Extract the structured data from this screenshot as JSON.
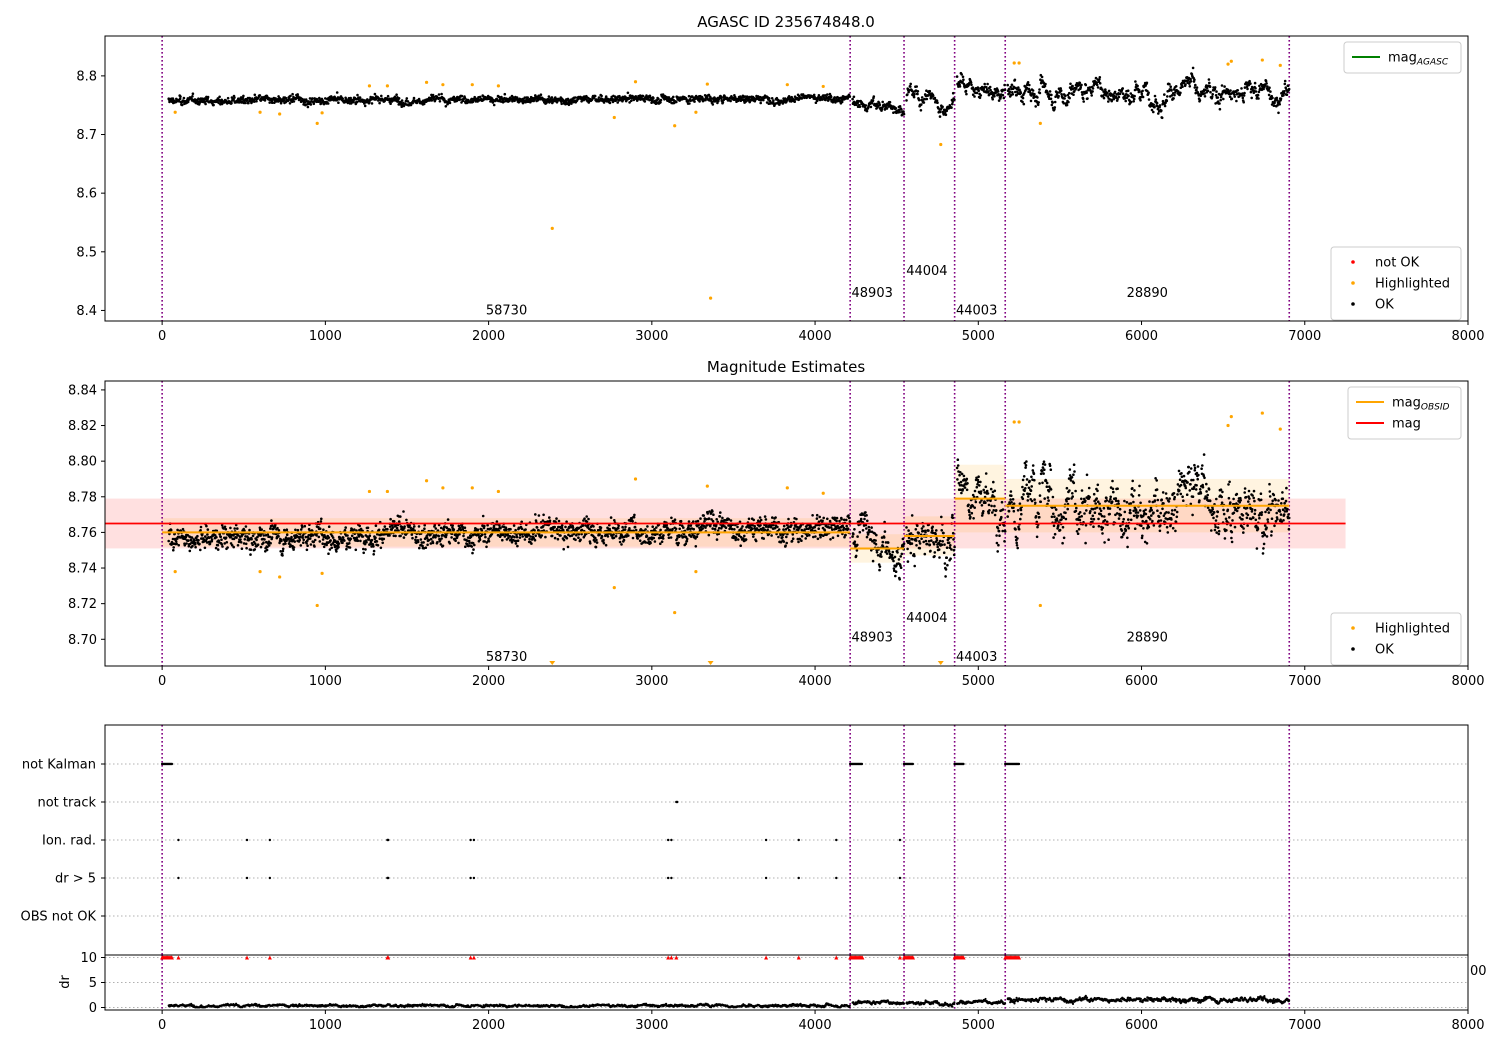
{
  "chart_data": [
    {
      "type": "scatter",
      "title": "AGASC ID 235674848.0",
      "xlim": [
        -350,
        8000
      ],
      "ylim": [
        8.382,
        8.868
      ],
      "x_ticks": [
        0,
        1000,
        2000,
        3000,
        4000,
        5000,
        6000,
        7000,
        8000
      ],
      "x_tick_labels": [
        "0",
        "1000",
        "2000",
        "3000",
        "4000",
        "5000",
        "6000",
        "7000",
        "8000"
      ],
      "y_ticks": [
        8.4,
        8.5,
        8.6,
        8.7,
        8.8
      ],
      "y_tick_labels": [
        "8.4",
        "8.5",
        "8.6",
        "8.7",
        "8.8"
      ],
      "legends": [
        {
          "placement": "top-right",
          "entries": [
            {
              "label": "mag",
              "sub": "AGASC",
              "marker": "line",
              "color": "#008000"
            }
          ]
        },
        {
          "placement": "lower-right",
          "entries": [
            {
              "label": "not OK",
              "marker": "dot",
              "color": "#ff0000"
            },
            {
              "label": "Highlighted",
              "marker": "dot",
              "color": "#ffa500"
            },
            {
              "label": "OK",
              "marker": "dot",
              "color": "#000000"
            }
          ]
        }
      ],
      "obs_boundaries": [
        0,
        4215,
        4545,
        4855,
        5165,
        6905
      ],
      "obs_labels": [
        {
          "text": "58730",
          "x": 2110,
          "y": 8.4
        },
        {
          "text": "48903",
          "x": 4350,
          "y": 8.43
        },
        {
          "text": "44004",
          "x": 4685,
          "y": 8.467
        },
        {
          "text": "44003",
          "x": 4990,
          "y": 8.4
        },
        {
          "text": "28890",
          "x": 6035,
          "y": 8.43
        }
      ],
      "segments": [
        {
          "x0": 40,
          "x1": 4215,
          "base": 8.76,
          "noise": 0.009,
          "spikes": 0.004,
          "trend": 0.006
        },
        {
          "x0": 4230,
          "x1": 4545,
          "base": 8.751,
          "noise": 0.008,
          "spikes": 0.012,
          "trend": -0.012
        },
        {
          "x0": 4560,
          "x1": 4855,
          "base": 8.76,
          "noise": 0.011,
          "spikes": 0.015,
          "trend": 0.0
        },
        {
          "x0": 4870,
          "x1": 5165,
          "base": 8.782,
          "noise": 0.012,
          "spikes": 0.015,
          "trend": -0.025
        },
        {
          "x0": 5180,
          "x1": 6905,
          "base": 8.775,
          "noise": 0.014,
          "spikes": 0.018,
          "trend": 0.0
        }
      ],
      "highlighted": [
        {
          "x": 80,
          "y": 8.738
        },
        {
          "x": 600,
          "y": 8.738
        },
        {
          "x": 720,
          "y": 8.735
        },
        {
          "x": 950,
          "y": 8.719
        },
        {
          "x": 980,
          "y": 8.737
        },
        {
          "x": 1270,
          "y": 8.783
        },
        {
          "x": 1380,
          "y": 8.783
        },
        {
          "x": 1620,
          "y": 8.789
        },
        {
          "x": 1720,
          "y": 8.785
        },
        {
          "x": 1900,
          "y": 8.785
        },
        {
          "x": 2060,
          "y": 8.783
        },
        {
          "x": 2390,
          "y": 8.54
        },
        {
          "x": 2770,
          "y": 8.729
        },
        {
          "x": 2900,
          "y": 8.79
        },
        {
          "x": 3140,
          "y": 8.715
        },
        {
          "x": 3270,
          "y": 8.738
        },
        {
          "x": 3340,
          "y": 8.786
        },
        {
          "x": 3360,
          "y": 8.421
        },
        {
          "x": 3830,
          "y": 8.785
        },
        {
          "x": 4050,
          "y": 8.782
        },
        {
          "x": 4770,
          "y": 8.683
        },
        {
          "x": 5220,
          "y": 8.822
        },
        {
          "x": 5250,
          "y": 8.822
        },
        {
          "x": 5380,
          "y": 8.719
        },
        {
          "x": 6530,
          "y": 8.82
        },
        {
          "x": 6550,
          "y": 8.825
        },
        {
          "x": 6740,
          "y": 8.827
        },
        {
          "x": 6850,
          "y": 8.818
        }
      ],
      "colors": {
        "ok": "#000000",
        "highlighted": "#ffa500",
        "not_ok": "#ff0000",
        "mag_agasc": "#008000",
        "boundary": "#800080"
      }
    },
    {
      "type": "scatter",
      "title": "Magnitude Estimates",
      "xlim": [
        -350,
        8000
      ],
      "ylim": [
        8.685,
        8.845
      ],
      "x_ticks": [
        0,
        1000,
        2000,
        3000,
        4000,
        5000,
        6000,
        7000,
        8000
      ],
      "x_tick_labels": [
        "0",
        "1000",
        "2000",
        "3000",
        "4000",
        "5000",
        "6000",
        "7000",
        "8000"
      ],
      "y_ticks": [
        8.7,
        8.72,
        8.74,
        8.76,
        8.78,
        8.8,
        8.82,
        8.84
      ],
      "y_tick_labels": [
        "8.70",
        "8.72",
        "8.74",
        "8.76",
        "8.78",
        "8.80",
        "8.82",
        "8.84"
      ],
      "legends": [
        {
          "placement": "top-right",
          "entries": [
            {
              "label": "mag",
              "sub": "OBSID",
              "marker": "line",
              "color": "#ffa500"
            },
            {
              "label": "mag",
              "marker": "line",
              "color": "#ff0000"
            }
          ]
        },
        {
          "placement": "lower-right",
          "entries": [
            {
              "label": "Highlighted",
              "marker": "dot",
              "color": "#ffa500"
            },
            {
              "label": "OK",
              "marker": "dot",
              "color": "#000000"
            }
          ]
        }
      ],
      "mag": {
        "value": 8.765,
        "band": [
          8.751,
          8.779
        ],
        "x0": -350,
        "x1": 7250
      },
      "mag_obsid": [
        {
          "x0": 0,
          "x1": 4215,
          "value": 8.76,
          "band": [
            8.752,
            8.768
          ]
        },
        {
          "x0": 4215,
          "x1": 4545,
          "value": 8.751,
          "band": [
            8.743,
            8.759
          ]
        },
        {
          "x0": 4545,
          "x1": 4855,
          "value": 8.758,
          "band": [
            8.747,
            8.769
          ]
        },
        {
          "x0": 4855,
          "x1": 5165,
          "value": 8.779,
          "band": [
            8.76,
            8.798
          ]
        },
        {
          "x0": 5165,
          "x1": 6905,
          "value": 8.775,
          "band": [
            8.76,
            8.79
          ]
        }
      ],
      "obs_labels": [
        {
          "text": "58730",
          "x": 2110,
          "y": 8.69
        },
        {
          "text": "48903",
          "x": 4350,
          "y": 8.701
        },
        {
          "text": "44004",
          "x": 4685,
          "y": 8.712
        },
        {
          "text": "44003",
          "x": 4990,
          "y": 8.69
        },
        {
          "text": "28890",
          "x": 6035,
          "y": 8.701
        }
      ],
      "offscale_markers": [
        2390,
        3360,
        4770
      ]
    },
    {
      "type": "scatter",
      "title": "",
      "xlim": [
        -350,
        8000
      ],
      "categories": [
        "not Kalman",
        "not track",
        "Ion. rad.",
        "dr > 5",
        "OBS not OK"
      ],
      "flags": {
        "not Kalman": [
          [
            0,
            60
          ],
          [
            4215,
            4290
          ],
          [
            4545,
            4600
          ],
          [
            4855,
            4910
          ],
          [
            5165,
            5250
          ]
        ],
        "not track": [
          [
            3150,
            3160
          ]
        ],
        "Ion. rad.": [
          100,
          520,
          660,
          1380,
          1385,
          1890,
          1910,
          3100,
          3120,
          3700,
          3900,
          4130,
          4520
        ],
        "dr > 5": [
          100,
          520,
          660,
          1380,
          1385,
          1890,
          1910,
          3100,
          3120,
          3700,
          3900,
          4130,
          4520
        ],
        "OBS not OK": []
      }
    },
    {
      "type": "scatter",
      "title": "",
      "ylabel": "dr",
      "xlim": [
        -350,
        8000
      ],
      "ylim": [
        -0.5,
        10.5
      ],
      "y_ticks": [
        0,
        5,
        10
      ],
      "y_tick_labels": [
        "0",
        "5",
        "10"
      ],
      "x_ticks": [
        0,
        1000,
        2000,
        3000,
        4000,
        5000,
        6000,
        7000,
        8000
      ],
      "x_tick_labels": [
        "0",
        "1000",
        "2000",
        "3000",
        "4000",
        "5000",
        "6000",
        "7000",
        "8000"
      ],
      "edge_tick_label": "00",
      "dr_segments": [
        {
          "x0": 40,
          "x1": 4215,
          "base": 0.4,
          "noise": 0.3
        },
        {
          "x0": 4230,
          "x1": 4545,
          "base": 1.0,
          "noise": 0.4
        },
        {
          "x0": 4560,
          "x1": 4855,
          "base": 1.0,
          "noise": 0.4
        },
        {
          "x0": 4870,
          "x1": 5165,
          "base": 1.0,
          "noise": 0.4
        },
        {
          "x0": 5180,
          "x1": 6905,
          "base": 1.6,
          "noise": 0.5
        }
      ],
      "clipped_red": [
        [
          0,
          60
        ],
        [
          4215,
          4290
        ],
        [
          4545,
          4600
        ],
        [
          4855,
          4910
        ],
        [
          5165,
          5250
        ],
        100,
        520,
        660,
        1380,
        1385,
        1890,
        1910,
        3100,
        3120,
        3150,
        3700,
        3900,
        4130,
        4520
      ]
    }
  ]
}
